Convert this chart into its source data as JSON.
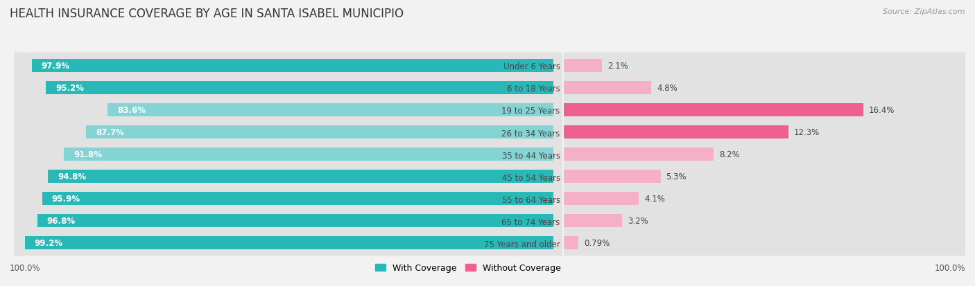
{
  "title": "HEALTH INSURANCE COVERAGE BY AGE IN SANTA ISABEL MUNICIPIO",
  "source": "Source: ZipAtlas.com",
  "categories": [
    "Under 6 Years",
    "6 to 18 Years",
    "19 to 25 Years",
    "26 to 34 Years",
    "35 to 44 Years",
    "45 to 54 Years",
    "55 to 64 Years",
    "65 to 74 Years",
    "75 Years and older"
  ],
  "with_coverage": [
    97.9,
    95.2,
    83.6,
    87.7,
    91.8,
    94.8,
    95.9,
    96.8,
    99.2
  ],
  "without_coverage": [
    2.1,
    4.8,
    16.4,
    12.3,
    8.2,
    5.3,
    4.1,
    3.2,
    0.79
  ],
  "with_coverage_labels": [
    "97.9%",
    "95.2%",
    "83.6%",
    "87.7%",
    "91.8%",
    "94.8%",
    "95.9%",
    "96.8%",
    "99.2%"
  ],
  "without_coverage_labels": [
    "2.1%",
    "4.8%",
    "16.4%",
    "12.3%",
    "8.2%",
    "5.3%",
    "4.1%",
    "3.2%",
    "0.79%"
  ],
  "color_with_coverage_dark": "#29b8b8",
  "color_with_coverage_light": "#84d4d4",
  "color_without_coverage_dark": "#ee6090",
  "color_without_coverage_light": "#f5b0c8",
  "background_color": "#f2f2f2",
  "row_bg_color": "#e2e2e2",
  "title_fontsize": 12,
  "label_fontsize": 8.5,
  "legend_fontsize": 9,
  "source_fontsize": 8,
  "bottom_label": "100.0%",
  "with_bar_colors": [
    "dark",
    "dark",
    "light",
    "light",
    "light",
    "dark",
    "dark",
    "dark",
    "dark"
  ],
  "without_bar_colors": [
    "light",
    "light",
    "dark",
    "dark",
    "light",
    "light",
    "light",
    "light",
    "light"
  ]
}
